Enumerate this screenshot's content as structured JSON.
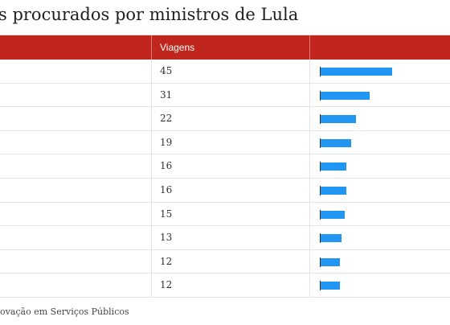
{
  "title": "s procurados por ministros de Lula",
  "header": {
    "col2_label": "Viagens"
  },
  "chart_data": {
    "type": "table",
    "title": "s procurados por ministros de Lula",
    "columns": [
      "Viagens"
    ],
    "values": [
      45,
      31,
      22,
      19,
      16,
      16,
      15,
      13,
      12,
      12
    ],
    "bar_color": "#2196f3",
    "header_color": "#c0261d",
    "bar_max": 45
  },
  "source": "ovação em Serviços Públicos"
}
